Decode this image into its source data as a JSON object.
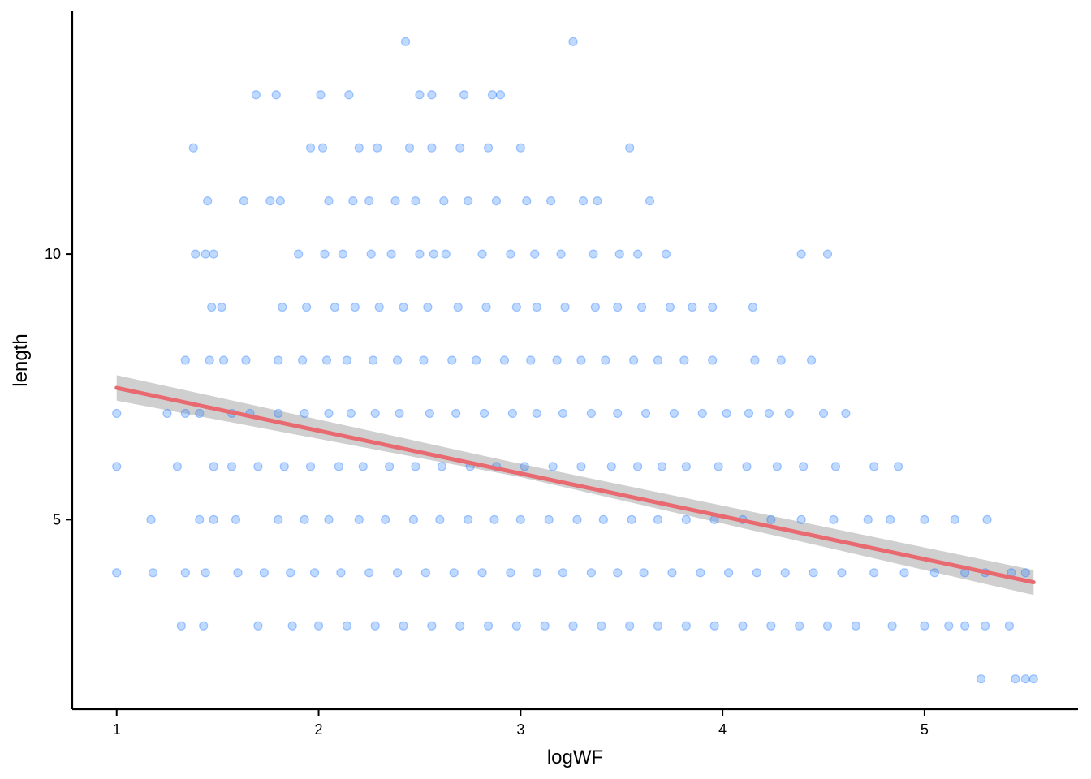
{
  "chart_data": {
    "type": "scatter",
    "xlabel": "logWF",
    "ylabel": "length",
    "xlim": [
      0.78,
      5.76
    ],
    "ylim": [
      1.43,
      14.57
    ],
    "x_ticks": [
      1,
      2,
      3,
      4,
      5
    ],
    "x_tick_labels": [
      "1",
      "2",
      "3",
      "4",
      "5"
    ],
    "y_ticks": [
      5,
      10
    ],
    "y_tick_labels": [
      "5",
      "10"
    ],
    "grid": false,
    "legend": "none",
    "point_color": "#2F80FF",
    "point_alpha": 0.3,
    "fit_line_color": "#E8696F",
    "confidence_band_color": "#BDBDBD",
    "series": [
      {
        "kind": "points",
        "note_on_density": "representative sample of the visible point cloud",
        "groups": [
          {
            "y": 14,
            "x": [
              2.43,
              3.26
            ]
          },
          {
            "y": 13,
            "x": [
              1.69,
              1.79,
              2.01,
              2.15,
              2.5,
              2.56,
              2.72,
              2.86,
              2.9
            ]
          },
          {
            "y": 12,
            "x": [
              1.38,
              1.96,
              2.02,
              2.2,
              2.29,
              2.45,
              2.56,
              2.7,
              2.84,
              3.0,
              3.54
            ]
          },
          {
            "y": 11,
            "x": [
              1.45,
              1.63,
              1.76,
              1.81,
              2.05,
              2.17,
              2.25,
              2.38,
              2.48,
              2.62,
              2.74,
              2.88,
              3.03,
              3.15,
              3.31,
              3.38,
              3.64
            ]
          },
          {
            "y": 10,
            "x": [
              1.39,
              1.44,
              1.48,
              1.9,
              2.03,
              2.12,
              2.26,
              2.36,
              2.5,
              2.57,
              2.63,
              2.81,
              2.95,
              3.07,
              3.2,
              3.36,
              3.49,
              3.58,
              3.72,
              4.39,
              4.52
            ]
          },
          {
            "y": 9,
            "x": [
              1.47,
              1.52,
              1.82,
              1.94,
              2.08,
              2.18,
              2.3,
              2.42,
              2.54,
              2.69,
              2.83,
              2.98,
              3.08,
              3.22,
              3.37,
              3.48,
              3.6,
              3.74,
              3.85,
              3.95,
              4.15
            ]
          },
          {
            "y": 8,
            "x": [
              1.34,
              1.46,
              1.53,
              1.64,
              1.8,
              1.92,
              2.04,
              2.14,
              2.27,
              2.39,
              2.52,
              2.66,
              2.78,
              2.92,
              3.05,
              3.18,
              3.3,
              3.42,
              3.56,
              3.68,
              3.81,
              3.95,
              4.16,
              4.29,
              4.44
            ]
          },
          {
            "y": 7,
            "x": [
              1.0,
              1.25,
              1.34,
              1.41,
              1.57,
              1.66,
              1.8,
              1.93,
              2.05,
              2.16,
              2.28,
              2.4,
              2.55,
              2.68,
              2.82,
              2.96,
              3.08,
              3.21,
              3.35,
              3.48,
              3.62,
              3.76,
              3.9,
              4.02,
              4.13,
              4.23,
              4.33,
              4.5,
              4.61
            ]
          },
          {
            "y": 6,
            "x": [
              1.0,
              1.3,
              1.48,
              1.57,
              1.7,
              1.83,
              1.96,
              2.1,
              2.22,
              2.35,
              2.48,
              2.61,
              2.75,
              2.88,
              3.02,
              3.16,
              3.3,
              3.45,
              3.58,
              3.7,
              3.82,
              3.98,
              4.12,
              4.27,
              4.4,
              4.56,
              4.75,
              4.87
            ]
          },
          {
            "y": 5,
            "x": [
              1.17,
              1.41,
              1.48,
              1.59,
              1.8,
              1.93,
              2.05,
              2.2,
              2.33,
              2.47,
              2.6,
              2.74,
              2.87,
              3.0,
              3.14,
              3.28,
              3.41,
              3.55,
              3.68,
              3.82,
              3.96,
              4.1,
              4.24,
              4.39,
              4.55,
              4.72,
              4.83,
              5.0,
              5.15,
              5.31
            ]
          },
          {
            "y": 4,
            "x": [
              1.0,
              1.18,
              1.34,
              1.44,
              1.6,
              1.73,
              1.86,
              1.98,
              2.11,
              2.25,
              2.39,
              2.53,
              2.67,
              2.81,
              2.95,
              3.08,
              3.21,
              3.35,
              3.48,
              3.61,
              3.75,
              3.89,
              4.03,
              4.17,
              4.31,
              4.45,
              4.59,
              4.75,
              4.9,
              5.05,
              5.2,
              5.3,
              5.43,
              5.5
            ]
          },
          {
            "y": 3,
            "x": [
              1.32,
              1.43,
              1.7,
              1.87,
              2.0,
              2.14,
              2.28,
              2.42,
              2.56,
              2.7,
              2.84,
              2.98,
              3.12,
              3.26,
              3.4,
              3.54,
              3.68,
              3.82,
              3.96,
              4.1,
              4.24,
              4.38,
              4.52,
              4.66,
              4.84,
              5.0,
              5.12,
              5.2,
              5.3,
              5.42
            ]
          },
          {
            "y": 2,
            "x": [
              5.28,
              5.45,
              5.5,
              5.54
            ]
          }
        ]
      },
      {
        "kind": "fit-line",
        "x": [
          1.0,
          5.54
        ],
        "y": [
          7.48,
          3.82
        ]
      },
      {
        "kind": "confidence-band",
        "x": [
          1.0,
          3.0,
          5.54
        ],
        "lower": [
          7.24,
          5.8,
          3.58
        ],
        "upper": [
          7.72,
          6.05,
          4.05
        ]
      }
    ]
  }
}
